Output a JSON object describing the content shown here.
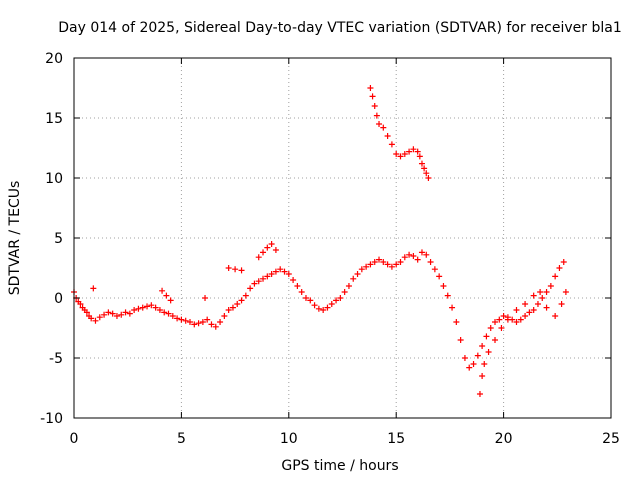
{
  "chart_data": {
    "type": "scatter",
    "title": "Day 014 of 2025, Sidereal Day-to-day VTEC variation (SDTVAR) for receiver bla1",
    "xlabel": "GPS time / hours",
    "ylabel": "SDTVAR / TECUs",
    "xlim": [
      0,
      25
    ],
    "ylim": [
      -10,
      20
    ],
    "xticks": [
      "0",
      "5",
      "10",
      "15",
      "20",
      "25"
    ],
    "yticks": [
      "-10",
      "-5",
      "0",
      "5",
      "10",
      "15",
      "20"
    ],
    "grid": true,
    "legend": "none",
    "marker": "+",
    "colors": {
      "series": "#ff0000",
      "grid": "#a0a0a0",
      "axis": "#000000"
    },
    "series": [
      {
        "name": "SDTVAR",
        "x": [
          0.0,
          0.1,
          0.2,
          0.3,
          0.4,
          0.5,
          0.6,
          0.7,
          0.8,
          1.0,
          1.2,
          1.4,
          1.6,
          1.8,
          2.0,
          2.2,
          2.4,
          2.6,
          2.8,
          3.0,
          3.2,
          3.4,
          3.6,
          3.8,
          4.0,
          4.2,
          4.4,
          4.6,
          4.8,
          5.0,
          5.2,
          5.4,
          5.6,
          5.8,
          6.0,
          6.2,
          6.4,
          6.6,
          6.8,
          7.0,
          7.2,
          7.4,
          7.6,
          7.8,
          8.0,
          8.2,
          8.4,
          8.6,
          8.8,
          9.0,
          9.2,
          9.4,
          9.6,
          9.8,
          10.0,
          10.2,
          10.4,
          10.6,
          10.8,
          11.0,
          11.2,
          11.4,
          11.6,
          11.8,
          12.0,
          12.2,
          12.4,
          12.6,
          12.8,
          13.0,
          13.2,
          13.4,
          13.6,
          13.8,
          14.0,
          14.2,
          14.4,
          14.6,
          14.8,
          15.0,
          15.2,
          15.4,
          15.6,
          15.8,
          16.0,
          16.2,
          16.4,
          16.6,
          16.8,
          17.0,
          17.2,
          17.4,
          17.6,
          17.8,
          18.0,
          18.2,
          18.4,
          18.6,
          18.8,
          19.0,
          19.2,
          19.4,
          19.6,
          19.8,
          20.0,
          20.2,
          20.4,
          20.6,
          20.8,
          21.0,
          21.2,
          21.4,
          21.6,
          21.8,
          22.0,
          22.2,
          22.4,
          22.6,
          22.8,
          13.8,
          13.9,
          14.0,
          14.1,
          14.2,
          14.4,
          14.6,
          14.8,
          15.0,
          15.2,
          15.4,
          15.6,
          15.8,
          16.0,
          16.1,
          16.2,
          16.3,
          16.4,
          16.5,
          0.9,
          4.1,
          4.3,
          4.5,
          6.1,
          7.2,
          7.5,
          7.8,
          8.6,
          8.8,
          9.0,
          9.2,
          9.4,
          18.9,
          19.0,
          19.1,
          19.3,
          19.6,
          19.9,
          20.2,
          20.6,
          21.0,
          21.4,
          21.7,
          22.0,
          22.4,
          22.7,
          22.9
        ],
        "y": [
          0.5,
          0.0,
          -0.3,
          -0.5,
          -0.8,
          -1.0,
          -1.2,
          -1.5,
          -1.7,
          -1.9,
          -1.6,
          -1.4,
          -1.2,
          -1.3,
          -1.5,
          -1.4,
          -1.2,
          -1.3,
          -1.0,
          -0.9,
          -0.8,
          -0.7,
          -0.6,
          -0.8,
          -1.0,
          -1.2,
          -1.3,
          -1.5,
          -1.7,
          -1.8,
          -1.9,
          -2.0,
          -2.2,
          -2.1,
          -2.0,
          -1.8,
          -2.2,
          -2.4,
          -2.0,
          -1.5,
          -1.0,
          -0.8,
          -0.5,
          -0.2,
          0.2,
          0.8,
          1.2,
          1.4,
          1.6,
          1.8,
          2.0,
          2.2,
          2.4,
          2.2,
          2.0,
          1.5,
          1.0,
          0.5,
          0.0,
          -0.2,
          -0.6,
          -0.9,
          -1.0,
          -0.8,
          -0.5,
          -0.2,
          0.0,
          0.5,
          1.0,
          1.6,
          2.0,
          2.4,
          2.6,
          2.8,
          3.0,
          3.2,
          3.0,
          2.8,
          2.6,
          2.8,
          3.0,
          3.4,
          3.6,
          3.5,
          3.2,
          3.8,
          3.6,
          3.0,
          2.4,
          1.8,
          1.0,
          0.2,
          -0.8,
          -2.0,
          -3.5,
          -5.0,
          -5.8,
          -5.5,
          -4.8,
          -4.0,
          -3.2,
          -2.5,
          -2.0,
          -1.8,
          -1.5,
          -1.6,
          -1.8,
          -2.0,
          -1.8,
          -1.5,
          -1.2,
          -1.0,
          -0.5,
          0.0,
          0.5,
          1.0,
          1.8,
          2.5,
          3.0,
          17.5,
          16.8,
          16.0,
          15.2,
          14.5,
          14.2,
          13.5,
          12.8,
          12.0,
          11.8,
          12.0,
          12.2,
          12.4,
          12.2,
          11.8,
          11.2,
          10.8,
          10.4,
          10.0,
          0.8,
          0.6,
          0.2,
          -0.2,
          0.0,
          2.5,
          2.4,
          2.3,
          3.4,
          3.8,
          4.2,
          4.5,
          4.0,
          -8.0,
          -6.5,
          -5.5,
          -4.5,
          -3.5,
          -2.5,
          -1.8,
          -1.0,
          -0.5,
          0.2,
          0.5,
          -0.8,
          -1.5,
          -0.5,
          0.5
        ]
      }
    ]
  }
}
